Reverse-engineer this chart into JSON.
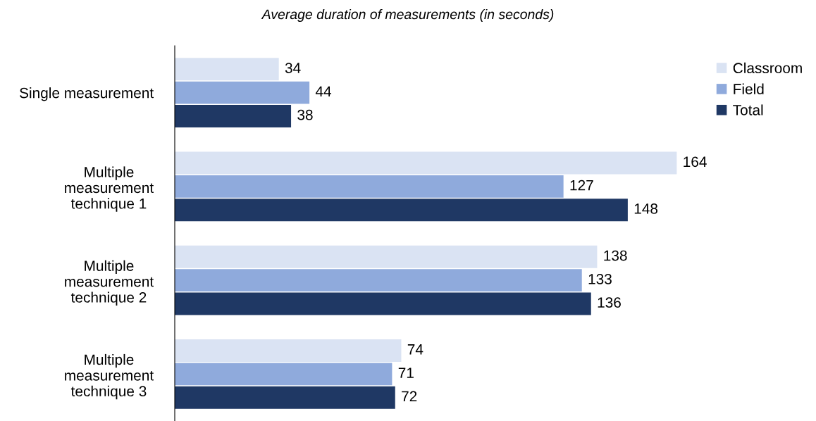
{
  "chart_data": {
    "type": "bar",
    "orientation": "horizontal",
    "title": "Average duration of measurements (in seconds)",
    "categories": [
      "Single measurement",
      "Multiple\nmeasurement\ntechnique 1",
      "Multiple\nmeasurement\ntechnique 2",
      "Multiple\nmeasurement\ntechnique 3"
    ],
    "series": [
      {
        "name": "Classroom",
        "color": "#dae3f3",
        "values": [
          34,
          164,
          138,
          74
        ]
      },
      {
        "name": "Field",
        "color": "#8faadc",
        "values": [
          44,
          127,
          133,
          71
        ]
      },
      {
        "name": "Total",
        "color": "#1f3864",
        "values": [
          38,
          148,
          136,
          72
        ]
      }
    ],
    "data_labels": true,
    "legend": "top right",
    "grid": false,
    "tick_labels": "y"
  }
}
